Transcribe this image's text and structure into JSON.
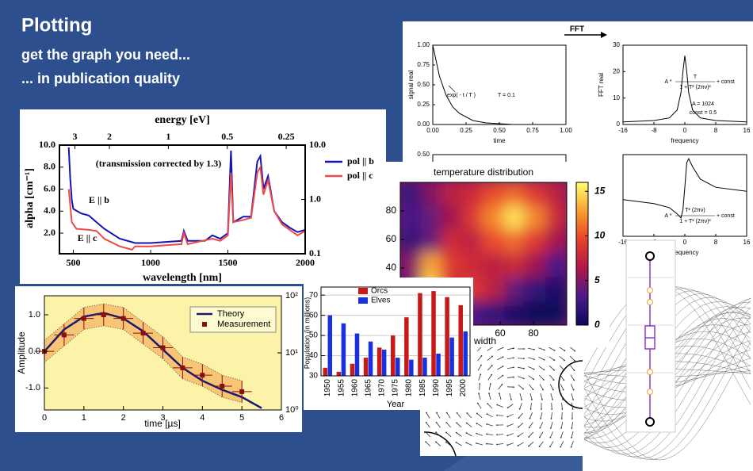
{
  "header": {
    "title": "Plotting",
    "subtitle": "get the graph you need...",
    "tagline": "... in publication quality"
  },
  "fft_window": {
    "label": "FFT"
  },
  "chart_data": [
    {
      "type": "line",
      "x2label": "energy [eV]",
      "xlabel": "wavelength [nm]",
      "ylabel": "alpha [cm⁻¹]",
      "annotations": [
        "(transmission corrected by 1.3)",
        "E || b",
        "E || c"
      ],
      "series": [
        {
          "name": "pol || b",
          "color": "#1414b4",
          "x": [
            470,
            480,
            490,
            500,
            550,
            600,
            650,
            700,
            800,
            900,
            1000,
            1100,
            1200,
            1215,
            1240,
            1350,
            1400,
            1450,
            1500,
            1520,
            1535,
            1600,
            1650,
            1690,
            1710,
            1730,
            1760,
            1800,
            1850,
            1900,
            1950,
            2000
          ],
          "values": [
            9.8,
            7,
            5,
            4.2,
            3.8,
            3.6,
            3.0,
            2.4,
            1.5,
            1.1,
            1.1,
            1.2,
            1.3,
            2.2,
            1.3,
            1.3,
            1.8,
            1.5,
            2,
            9.5,
            3,
            3.5,
            3.5,
            8.5,
            9,
            6,
            7.2,
            4,
            3,
            2.5,
            2.1,
            2.3
          ]
        },
        {
          "name": "pol || c",
          "color": "#f04848",
          "x": [
            470,
            490,
            520,
            600,
            650,
            700,
            800,
            880,
            900,
            1000,
            1100,
            1200,
            1215,
            1240,
            1400,
            1450,
            1500,
            1520,
            1535,
            1600,
            1650,
            1690,
            1710,
            1730,
            1760,
            1800,
            1850,
            1900,
            1950,
            2000
          ],
          "values": [
            6,
            3,
            2.4,
            2.3,
            2.2,
            1.5,
            0.8,
            0.5,
            0.8,
            0.8,
            0.9,
            1.0,
            2.0,
            1.0,
            1.5,
            1.3,
            1.8,
            7.5,
            3,
            3.2,
            3.4,
            7.5,
            8,
            5.5,
            6.8,
            4,
            2.8,
            2.3,
            1.8,
            2.2
          ]
        }
      ],
      "xlim": [
        410,
        2000
      ],
      "xticks": [
        500,
        1000,
        1500,
        2000
      ],
      "ylim": [
        0.13,
        10
      ],
      "yticks": [
        {
          "value": 2,
          "label": "2.0"
        },
        {
          "value": 4,
          "label": "4.0"
        },
        {
          "value": 6,
          "label": "6.0"
        },
        {
          "value": 8,
          "label": "8.0"
        },
        {
          "value": 10,
          "label": "10.0"
        }
      ],
      "y2lim": [
        0.1,
        10
      ],
      "y2log": true,
      "y2ticks": [
        {
          "value": 0.1,
          "label": "0.1"
        },
        {
          "value": 1,
          "label": "1.0"
        },
        {
          "value": 10,
          "label": "10.0"
        }
      ],
      "x2lim": [
        3.6,
        0.2
      ],
      "x2log": true,
      "x2ticks": [
        3,
        2,
        1,
        0.5,
        0.25
      ],
      "legend": "upper right"
    },
    {
      "type": "line",
      "xlabel": "time [µs]",
      "ylabel": "Amplitude",
      "band_color": "#f5b060",
      "background": "#fdf3a8",
      "series": [
        {
          "name": "Theory",
          "color": "#1a1a6e",
          "x": [
            0,
            0.5,
            1,
            1.5,
            2,
            2.5,
            3,
            3.5,
            4,
            4.5,
            5,
            5.5
          ],
          "values": [
            0,
            0.6,
            0.95,
            1.05,
            0.9,
            0.55,
            0.05,
            -0.45,
            -0.8,
            -1.05,
            -1.25,
            -1.55
          ]
        },
        {
          "name": "Measurement",
          "color": "#8b1010",
          "x": [
            0,
            0.5,
            1,
            1.5,
            2,
            2.5,
            3,
            3.5,
            4,
            4.5,
            5
          ],
          "values": [
            0,
            0.45,
            0.9,
            1.0,
            0.9,
            0.5,
            0.1,
            -0.45,
            -0.65,
            -0.95,
            -1.1
          ],
          "yerror": [
            0.3,
            0.3,
            0.3,
            0.3,
            0.3,
            0.3,
            0.3,
            0.3,
            0.3,
            0.3,
            0.3
          ],
          "xerror": [
            0.25,
            0.25,
            0.25,
            0.25,
            0.25,
            0.25,
            0.25,
            0.25,
            0.25,
            0.25,
            0.25
          ]
        }
      ],
      "xlim": [
        0,
        6
      ],
      "xticks": [
        0,
        1,
        2,
        3,
        4,
        5,
        6
      ],
      "ylim": [
        -1.6,
        1.52
      ],
      "yticks": [
        {
          "value": -1,
          "label": "-1.0"
        },
        {
          "value": 0,
          "label": "0.0"
        },
        {
          "value": 1,
          "label": "1.0"
        }
      ],
      "y2lim": [
        1,
        100
      ],
      "y2log": true,
      "y2ticks": [
        {
          "value": 1,
          "label": "10⁰"
        },
        {
          "value": 10,
          "label": "10¹"
        },
        {
          "value": 100,
          "label": "10²"
        }
      ],
      "legend": "upper right"
    },
    {
      "type": "bar",
      "xlabel": "Year",
      "ylabel": "Population (in millions)",
      "categories": [
        "1950",
        "1955",
        "1960",
        "1965",
        "1970",
        "1975",
        "1980",
        "1985",
        "1990",
        "1995",
        "2000"
      ],
      "series": [
        {
          "name": "Orcs",
          "color": "#c81818",
          "values": [
            34,
            32,
            36,
            39,
            44,
            50,
            59,
            71,
            72,
            69,
            65
          ]
        },
        {
          "name": "Elves",
          "color": "#1830e0",
          "values": [
            60,
            56,
            51,
            47,
            43,
            39,
            38,
            39,
            41,
            49,
            52
          ]
        }
      ],
      "ylim": [
        30,
        74
      ],
      "yticks": [
        30,
        40,
        50,
        60,
        70
      ],
      "grid": true,
      "legend": "upper left"
    },
    {
      "type": "heatmap",
      "title": "temperature distribution",
      "xlabel": "width",
      "x": [
        6,
        19,
        31,
        44,
        56,
        69,
        81,
        94
      ],
      "y": [
        92,
        75,
        58,
        42,
        25,
        8
      ],
      "z": [
        [
          2,
          5,
          7,
          8,
          10,
          11,
          9,
          7
        ],
        [
          3,
          4,
          6,
          9,
          12,
          15,
          12,
          8
        ],
        [
          2,
          4,
          8,
          7,
          10,
          11,
          9,
          6
        ],
        [
          5,
          13,
          9,
          8,
          7,
          8,
          6,
          3
        ],
        [
          4,
          15,
          8,
          9,
          7,
          4,
          2,
          1
        ],
        [
          1,
          4,
          5,
          3,
          2,
          1,
          0,
          0
        ]
      ],
      "xlim": [
        0,
        100
      ],
      "xticks": [
        60,
        80
      ],
      "ylim": [
        0,
        100
      ],
      "yticks": [
        40,
        60,
        80
      ],
      "zlim": [
        0,
        16
      ],
      "zticks": [
        0,
        5,
        10,
        15
      ],
      "colormap": [
        "#0a0a5a",
        "#4a1a8a",
        "#b01848",
        "#e8402a",
        "#f8a030",
        "#ffff70"
      ]
    },
    {
      "type": "line",
      "xlabel": "time",
      "ylabel": "signal real",
      "annotations": [
        "exp( - t / T )",
        "T = 0.1"
      ],
      "series": [
        {
          "color": "#000000",
          "x": [
            0,
            0.05,
            0.1,
            0.15,
            0.2,
            0.3,
            0.4,
            0.6,
            0.8,
            1.0
          ],
          "values": [
            1,
            0.61,
            0.37,
            0.22,
            0.14,
            0.05,
            0.02,
            0,
            0,
            0
          ]
        }
      ],
      "xlim": [
        0,
        1
      ],
      "xticks": [
        {
          "value": 0,
          "label": "0.00"
        },
        {
          "value": 0.25,
          "label": "0.25"
        },
        {
          "value": 0.5,
          "label": "0.50"
        },
        {
          "value": 0.75,
          "label": "0.75"
        },
        {
          "value": 1,
          "label": "1.00"
        }
      ],
      "ylim": [
        0,
        1
      ],
      "yticks": [
        {
          "value": 0,
          "label": "0.00"
        },
        {
          "value": 0.25,
          "label": "0.25"
        },
        {
          "value": 0.5,
          "label": "0.50"
        },
        {
          "value": 0.75,
          "label": "0.75"
        },
        {
          "value": 1,
          "label": "1.00"
        }
      ]
    },
    {
      "type": "line",
      "xlabel": "frequency",
      "ylabel": "FFT real",
      "annotations": [
        "A *",
        "T",
        "1 + T² (2πν)²",
        "+ const",
        "A = 1024",
        "const = 0.5"
      ],
      "series": [
        {
          "color": "#000000",
          "x": [
            -16,
            -8,
            -4,
            -2,
            -1,
            -0.5,
            0,
            0.5,
            1,
            2,
            4,
            8,
            16
          ],
          "values": [
            1,
            1.5,
            2.5,
            5.5,
            12,
            20,
            26,
            20,
            12,
            5.5,
            2.5,
            1.5,
            1
          ]
        }
      ],
      "xlim": [
        -16,
        16
      ],
      "xticks": [
        -16,
        -8,
        0,
        8,
        16
      ],
      "ylim": [
        0,
        30
      ],
      "yticks": [
        0,
        10,
        20,
        30
      ]
    },
    {
      "type": "line",
      "ylim": [
        0,
        0.5
      ],
      "yticks": [
        {
          "value": 0.5,
          "label": "0.50"
        }
      ],
      "xlim": [
        0,
        1
      ],
      "xticks": []
    },
    {
      "type": "line",
      "xlabel": "frequency",
      "annotations": [
        "A *",
        "T² (2πν)",
        "1 + T² (2πν)²",
        "+ const"
      ],
      "series": [
        {
          "color": "#000000",
          "x": [
            -16,
            -8,
            -4,
            -2,
            -1,
            -0.5,
            0,
            0.5,
            1,
            2,
            4,
            8,
            16
          ],
          "values": [
            -0.1,
            -0.2,
            -0.3,
            -0.45,
            -0.55,
            -0.35,
            0.2,
            0.8,
            0.9,
            0.7,
            0.4,
            0.2,
            0.1
          ]
        }
      ],
      "xlim": [
        -16,
        16
      ],
      "xticks": [
        -16,
        -8,
        0,
        8,
        16
      ],
      "ylim": [
        -1,
        1
      ],
      "yticks": []
    }
  ]
}
